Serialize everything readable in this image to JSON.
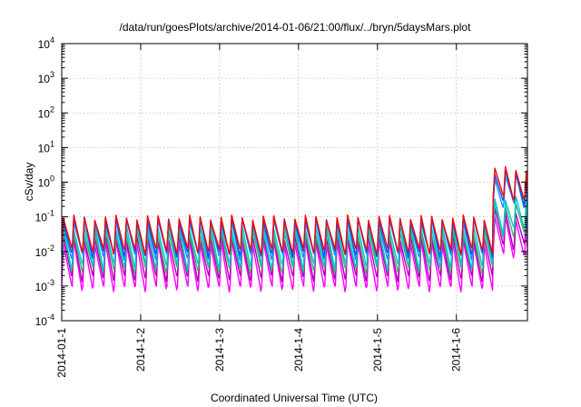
{
  "chart_data": {
    "type": "line",
    "title": "/data/run/goesPlots/archive/2014-01-06/21:00/flux/../bryn/5daysMars.plot",
    "xlabel": "Coordinated Universal Time (UTC)",
    "ylabel": "cSv/day",
    "yscale": "log",
    "ylim": [
      0.0001,
      10000
    ],
    "xlim": [
      0,
      5.9
    ],
    "y_ticks": [
      {
        "value": 0.0001,
        "mantissa": "10",
        "exp": "-4"
      },
      {
        "value": 0.001,
        "mantissa": "10",
        "exp": "-3"
      },
      {
        "value": 0.01,
        "mantissa": "10",
        "exp": "-2"
      },
      {
        "value": 0.1,
        "mantissa": "10",
        "exp": "-1"
      },
      {
        "value": 1,
        "mantissa": "10",
        "exp": "0"
      },
      {
        "value": 10,
        "mantissa": "10",
        "exp": "1"
      },
      {
        "value": 100,
        "mantissa": "10",
        "exp": "2"
      },
      {
        "value": 1000,
        "mantissa": "10",
        "exp": "3"
      },
      {
        "value": 10000,
        "mantissa": "10",
        "exp": "4"
      }
    ],
    "x_ticks": [
      {
        "value": 0,
        "label": "2014-01-1"
      },
      {
        "value": 1,
        "label": "2014-1-2"
      },
      {
        "value": 2,
        "label": "2014-1-3"
      },
      {
        "value": 3,
        "label": "2014-1-4"
      },
      {
        "value": 4,
        "label": "2014-1-5"
      },
      {
        "value": 5,
        "label": "2014-1-6"
      }
    ],
    "grid": true,
    "legend": "none",
    "series": [
      {
        "color": "#ff0000",
        "peak": 0.095,
        "trough": 0.011,
        "jump_peak": 2.4,
        "jump_trough": 0.35
      },
      {
        "color": "#0055ff",
        "peak": 0.085,
        "trough": 0.009,
        "jump_peak": 1.9,
        "jump_trough": 0.28
      },
      {
        "color": "#1e90ff",
        "peak": 0.075,
        "trough": 0.0075,
        "jump_peak": 1.5,
        "jump_trough": 0.22
      },
      {
        "color": "#00c8c8",
        "peak": 0.05,
        "trough": 0.004,
        "jump_peak": 0.35,
        "jump_trough": 0.045
      },
      {
        "color": "#3cb371",
        "peak": 0.035,
        "trough": 0.003,
        "jump_peak": 0.25,
        "jump_trough": 0.03
      },
      {
        "color": "#b000b0",
        "peak": 0.025,
        "trough": 0.0018,
        "jump_peak": 0.15,
        "jump_trough": 0.015
      },
      {
        "color": "#ff00ff",
        "peak": 0.018,
        "trough": 0.0009,
        "jump_peak": 0.09,
        "jump_trough": 0.008
      }
    ],
    "pattern": {
      "cycles_per_day": 7.5,
      "jump_start": 5.4
    }
  }
}
